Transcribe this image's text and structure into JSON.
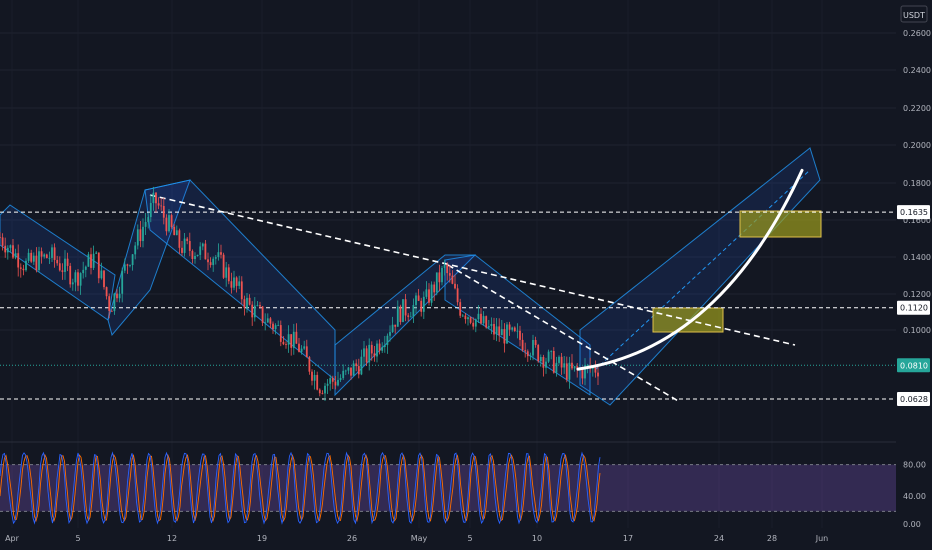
{
  "colors": {
    "background": "#131722",
    "channel_fill": "#2962ff",
    "channel_stroke": "#2196f3",
    "candle_up": "#26a69a",
    "candle_down": "#ef5350",
    "price_label_bg": "#26a69a",
    "rsi_band": "#7e57c2",
    "k_line": "#2962ff",
    "d_line": "#ff6d00",
    "target_zone": "#9c9c1c"
  },
  "chart_data": [
    {
      "type": "candlestick",
      "name": "price",
      "currency": "USDT",
      "ylim": [
        0.05,
        0.27
      ],
      "yticks": [
        "0.2600",
        "0.2400",
        "0.2200",
        "0.2000",
        "0.1800",
        "0.1600",
        "0.1400",
        "0.1200",
        "0.1000"
      ],
      "xtick_labels": [
        "Apr",
        "5",
        "12",
        "19",
        "26",
        "May",
        "5",
        "10",
        "17",
        "24",
        "28",
        "Jun"
      ],
      "current_price": "0.0810",
      "horizontal_levels": [
        "0.1635",
        "0.1120",
        "0.0628"
      ],
      "trend_line_from": 0.175,
      "trend_line_to": 0.092,
      "path_points": [
        0.15,
        0.135,
        0.14,
        0.128,
        0.14,
        0.112,
        0.14,
        0.17,
        0.145,
        0.14,
        0.112,
        0.1,
        0.09,
        0.07,
        0.075,
        0.09,
        0.11,
        0.115,
        0.133,
        0.112,
        0.1,
        0.095,
        0.085,
        0.077,
        0.08
      ],
      "projection_targets": [
        0.08,
        0.186
      ]
    },
    {
      "type": "line",
      "name": "oscillator",
      "levels": [
        "80.00",
        "40.00",
        "0.00"
      ],
      "ylim": [
        0,
        100
      ]
    }
  ]
}
